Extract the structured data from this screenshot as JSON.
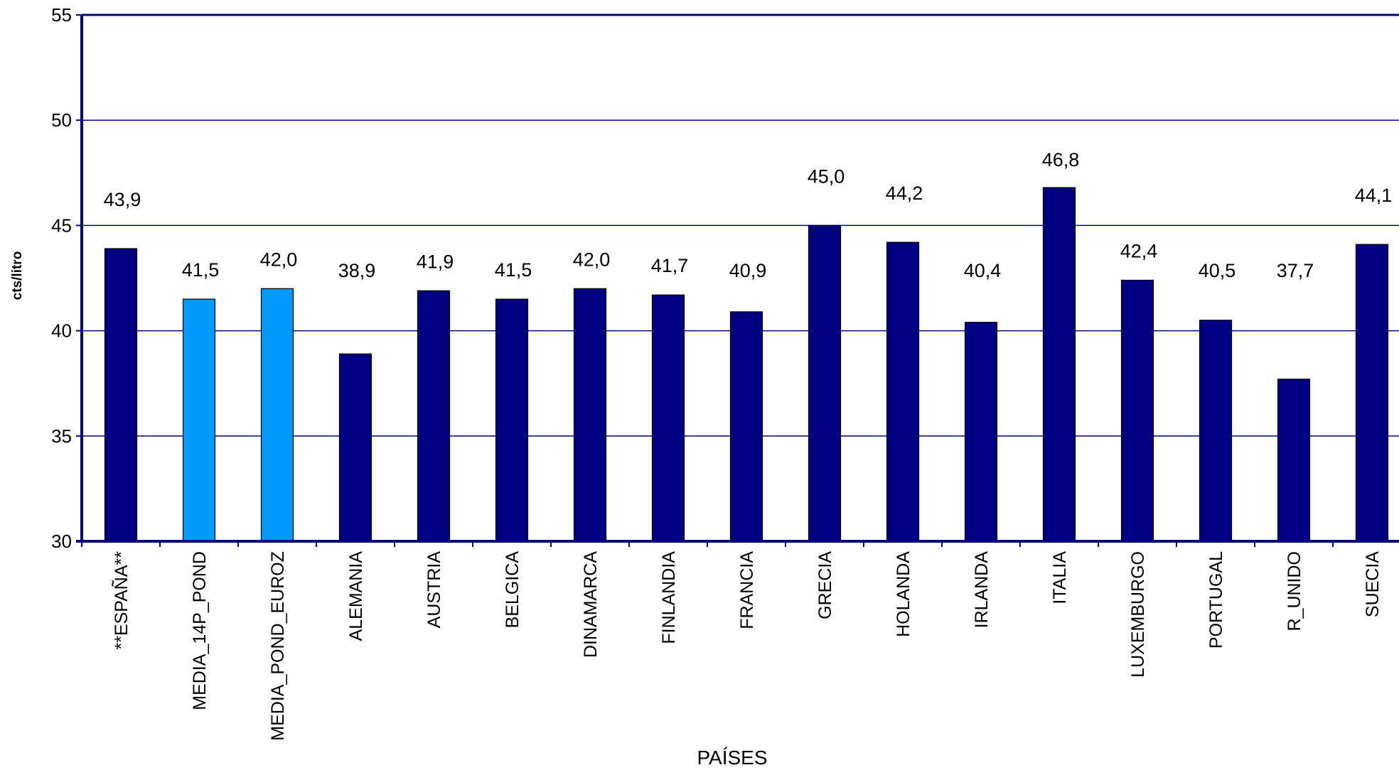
{
  "chart_data": {
    "type": "bar",
    "title": "",
    "xlabel": "PAÍSES",
    "ylabel": "cts/litro",
    "ylim": [
      30,
      55
    ],
    "yticks": [
      30,
      35,
      40,
      45,
      50,
      55
    ],
    "grid": true,
    "categories": [
      "**ESPAÑA**",
      "MEDIA_14P_POND",
      "MEDIA_POND_EUROZ",
      "ALEMANIA",
      "AUSTRIA",
      "BELGICA",
      "DINAMARCA",
      "FINLANDIA",
      "FRANCIA",
      "GRECIA",
      "HOLANDA",
      "IRLANDA",
      "ITALIA",
      "LUXEMBURGO",
      "PORTUGAL",
      "R_UNIDO",
      "SUECIA"
    ],
    "values": [
      43.9,
      41.5,
      42.0,
      38.9,
      41.9,
      41.5,
      42.0,
      41.7,
      40.9,
      45.0,
      44.2,
      40.4,
      46.8,
      42.4,
      40.5,
      37.7,
      44.1
    ],
    "value_labels": [
      "43,9",
      "41,5",
      "42,0",
      "38,9",
      "41,9",
      "41,5",
      "42,0",
      "41,7",
      "40,9",
      "45,0",
      "44,2",
      "40,4",
      "46,8",
      "42,4",
      "40,5",
      "37,7",
      "44,1"
    ],
    "bar_colors": [
      "#000080",
      "#0099FF",
      "#0099FF",
      "#000080",
      "#000080",
      "#000080",
      "#000080",
      "#000080",
      "#000080",
      "#000080",
      "#000080",
      "#000080",
      "#000080",
      "#000080",
      "#000080",
      "#000080",
      "#000080"
    ],
    "axis_color": "#000080",
    "grid_color": "#000080"
  }
}
